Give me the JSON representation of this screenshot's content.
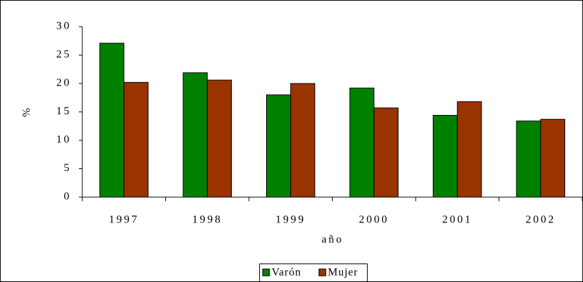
{
  "chart_data": {
    "type": "bar",
    "x_label": "año",
    "y_label": "%",
    "categories": [
      "1997",
      "1998",
      "1999",
      "2000",
      "2001",
      "2002"
    ],
    "series": [
      {
        "name": "Varón",
        "color": "#008000",
        "values": [
          27.1,
          21.9,
          18.0,
          19.2,
          14.4,
          13.4
        ]
      },
      {
        "name": "Mujer",
        "color": "#993300",
        "values": [
          20.2,
          20.6,
          20.0,
          15.7,
          16.8,
          13.7
        ]
      }
    ],
    "ylim": [
      0,
      30
    ],
    "yticks": [
      0,
      5,
      10,
      15,
      20,
      25,
      30
    ],
    "grid": false,
    "legend": "bottom"
  }
}
